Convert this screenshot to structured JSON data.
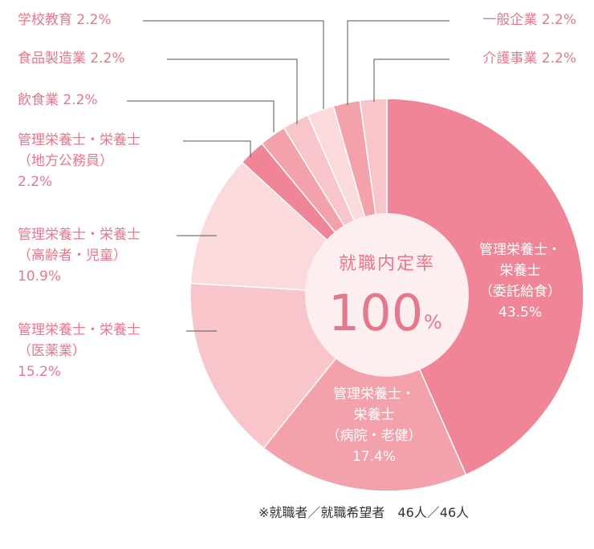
{
  "chart_data": {
    "type": "pie",
    "center": {
      "title": "就職内定率",
      "value": "100",
      "unit": "%"
    },
    "footnote": "※就職者／就職希望者　46人／46人",
    "slices": [
      {
        "lines": [
          "管理栄養士・",
          "栄養士",
          "（委託給食）"
        ],
        "pct_label": "43.5%",
        "value": 43.5,
        "color": "#ef8596"
      },
      {
        "lines": [
          "管理栄養士・",
          "栄養士",
          "（病院・老健）"
        ],
        "pct_label": "17.4%",
        "value": 17.4,
        "color": "#f3a2ac"
      },
      {
        "lines": [
          "管理栄養士・栄養士",
          "（医薬業）"
        ],
        "pct_label": "15.2%",
        "value": 15.2,
        "color": "#f8c5ca"
      },
      {
        "lines": [
          "管理栄養士・栄養士",
          "（高齢者・児童）"
        ],
        "pct_label": "10.9%",
        "value": 10.9,
        "color": "#fbdadd"
      },
      {
        "lines": [
          "管理栄養士・栄養士",
          "（地方公務員）"
        ],
        "pct_label": "2.2%",
        "value": 2.2,
        "color": "#ef8596"
      },
      {
        "lines": [
          "飲食業"
        ],
        "pct_label": "2.2%",
        "value": 2.2,
        "color": "#f3a2ac"
      },
      {
        "lines": [
          "食品製造業"
        ],
        "pct_label": "2.2%",
        "value": 2.2,
        "color": "#f8c5ca"
      },
      {
        "lines": [
          "学校教育"
        ],
        "pct_label": "2.2%",
        "value": 2.2,
        "color": "#fbdadd"
      },
      {
        "lines": [
          "一般企業"
        ],
        "pct_label": "2.2%",
        "value": 2.2,
        "color": "#f3a2ac"
      },
      {
        "lines": [
          "介護事業"
        ],
        "pct_label": "2.2%",
        "value": 2.2,
        "color": "#f8c5ca"
      }
    ]
  }
}
